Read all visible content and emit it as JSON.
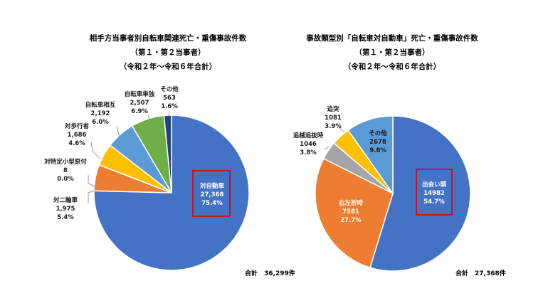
{
  "chart_data": [
    {
      "type": "pie",
      "title": [
        "相手方当事者別自転車関連死亡・重傷事故件数",
        "（第１・第２当事者）",
        "（令和２年～令和６年合計）"
      ],
      "slices": [
        {
          "label": "対自動車",
          "value": 27368,
          "value_text": "27,368",
          "percent": "75.4%",
          "color": "#4472C4",
          "highlight": true
        },
        {
          "label": "対二輪車",
          "value": 1975,
          "value_text": "1,975",
          "percent": "5.4%",
          "color": "#ED7D31"
        },
        {
          "label": "対特定小型原付",
          "value": 8,
          "value_text": "8",
          "percent": "0.0%",
          "color": "#A5A5A5"
        },
        {
          "label": "対歩行者",
          "value": 1686,
          "value_text": "1,686",
          "percent": "4.6%",
          "color": "#FFC000"
        },
        {
          "label": "自転車相互",
          "value": 2192,
          "value_text": "2,192",
          "percent": "6.0%",
          "color": "#5B9BD5"
        },
        {
          "label": "自転車単独",
          "value": 2507,
          "value_text": "2,507",
          "percent": "6.9%",
          "color": "#70AD47"
        },
        {
          "label": "その他",
          "value": 563,
          "value_text": "563",
          "percent": "1.6%",
          "color": "#264478"
        }
      ],
      "total_label": "合計　36,299件"
    },
    {
      "type": "pie",
      "title": [
        "事故類型別「自転車対自動車」死亡・重傷事故件数",
        "（第１・第２当事者）",
        "（令和２年～令和６年合計）"
      ],
      "slices": [
        {
          "label": "出会い頭",
          "value": 14982,
          "value_text": "14982",
          "percent": "54.7%",
          "color": "#4472C4",
          "highlight": true
        },
        {
          "label": "右左折時",
          "value": 7581,
          "value_text": "7581",
          "percent": "27.7%",
          "color": "#ED7D31"
        },
        {
          "label": "追越追抜時",
          "value": 1046,
          "value_text": "1046",
          "percent": "3.8%",
          "color": "#A5A5A5"
        },
        {
          "label": "追突",
          "value": 1081,
          "value_text": "1081",
          "percent": "3.9%",
          "color": "#FFC000"
        },
        {
          "label": "その他",
          "value": 2678,
          "value_text": "2678",
          "percent": "9.8%",
          "color": "#5B9BD5"
        }
      ],
      "total_label": "合計　27,368件"
    }
  ]
}
